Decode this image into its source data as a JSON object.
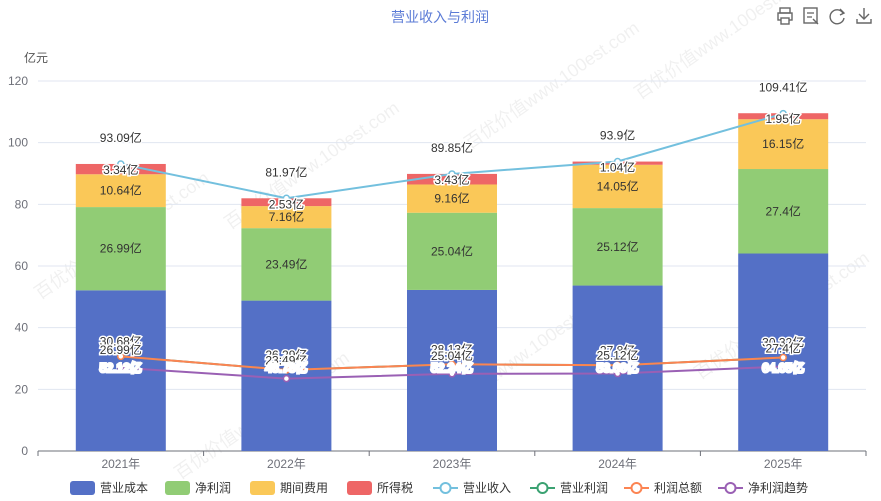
{
  "title": "营业收入与利润",
  "toolbar": {
    "icons": [
      "print-icon",
      "data-view-icon",
      "restore-icon",
      "download-icon"
    ]
  },
  "watermark": "百优价值www.100est.com",
  "chart_data": {
    "type": "bar",
    "stacked": true,
    "categories": [
      "2021年",
      "2022年",
      "2023年",
      "2024年",
      "2025年"
    ],
    "ylabel": "亿元",
    "ylim": [
      0,
      120
    ],
    "yticks": [
      0,
      20,
      40,
      60,
      80,
      100,
      120
    ],
    "grid": true,
    "legend_position": "bottom",
    "bar_series": [
      {
        "name": "营业成本",
        "color": "#5470c6",
        "values": [
          52.12,
          48.78,
          52.24,
          53.66,
          64.05
        ],
        "labels": [
          "52.12亿",
          "48.78亿",
          "52.24亿",
          "53.66亿",
          "64.05亿"
        ]
      },
      {
        "name": "净利润",
        "color": "#91cc75",
        "values": [
          26.99,
          23.49,
          25.04,
          25.12,
          27.4
        ],
        "labels": [
          "26.99亿",
          "23.49亿",
          "25.04亿",
          "25.12亿",
          "27.4亿"
        ]
      },
      {
        "name": "期间费用",
        "color": "#fac858",
        "values": [
          10.64,
          7.16,
          9.16,
          14.05,
          16.15
        ],
        "labels": [
          "10.64亿",
          "7.16亿",
          "9.16亿",
          "14.05亿",
          "16.15亿"
        ]
      },
      {
        "name": "所得税",
        "color": "#ee6666",
        "values": [
          3.34,
          2.53,
          3.43,
          1.04,
          1.95
        ],
        "labels": [
          "3.34亿",
          "2.53亿",
          "3.43亿",
          "1.04亿",
          "1.95亿"
        ]
      }
    ],
    "line_series": [
      {
        "name": "营业收入",
        "color": "#73c0de",
        "values": [
          93.09,
          81.97,
          89.85,
          93.9,
          109.41
        ],
        "labels": [
          "93.09亿",
          "81.97亿",
          "89.85亿",
          "93.9亿",
          "109.41亿"
        ]
      },
      {
        "name": "营业利润",
        "color": "#3ba272",
        "values": [
          30.68,
          26.29,
          28.13,
          27.8,
          30.32
        ],
        "labels": [
          "",
          "",
          "",
          "",
          ""
        ]
      },
      {
        "name": "利润总额",
        "color": "#fc8452",
        "values": [
          30.68,
          26.29,
          28.13,
          27.8,
          30.32
        ],
        "labels": [
          "30.68亿",
          "26.29亿",
          "28.13亿",
          "27.8亿",
          "30.32亿"
        ]
      },
      {
        "name": "净利润趋势",
        "color": "#9a60b4",
        "values": [
          26.99,
          23.49,
          25.04,
          25.12,
          27.4
        ],
        "labels": [
          "26.99亿",
          "23.49亿",
          "25.04亿",
          "25.12亿",
          "27.4亿"
        ]
      }
    ]
  }
}
